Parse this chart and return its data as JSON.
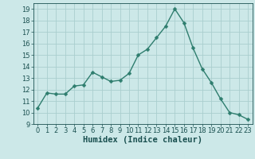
{
  "x": [
    0,
    1,
    2,
    3,
    4,
    5,
    6,
    7,
    8,
    9,
    10,
    11,
    12,
    13,
    14,
    15,
    16,
    17,
    18,
    19,
    20,
    21,
    22,
    23
  ],
  "y": [
    10.4,
    11.7,
    11.6,
    11.6,
    12.3,
    12.4,
    13.5,
    13.1,
    12.7,
    12.8,
    13.4,
    15.0,
    15.5,
    16.5,
    17.5,
    19.0,
    17.8,
    15.6,
    13.8,
    12.6,
    11.2,
    10.0,
    9.8,
    9.4
  ],
  "line_color": "#2e7d6e",
  "marker": "D",
  "marker_size": 2.5,
  "bg_color": "#cce8e8",
  "grid_color": "#aacece",
  "xlabel": "Humidex (Indice chaleur)",
  "ylim": [
    9,
    19.5
  ],
  "xlim": [
    -0.5,
    23.5
  ],
  "yticks": [
    9,
    10,
    11,
    12,
    13,
    14,
    15,
    16,
    17,
    18,
    19
  ],
  "xticks": [
    0,
    1,
    2,
    3,
    4,
    5,
    6,
    7,
    8,
    9,
    10,
    11,
    12,
    13,
    14,
    15,
    16,
    17,
    18,
    19,
    20,
    21,
    22,
    23
  ],
  "tick_color": "#1a5050",
  "label_fontsize": 6,
  "axis_label_fontsize": 7.5
}
